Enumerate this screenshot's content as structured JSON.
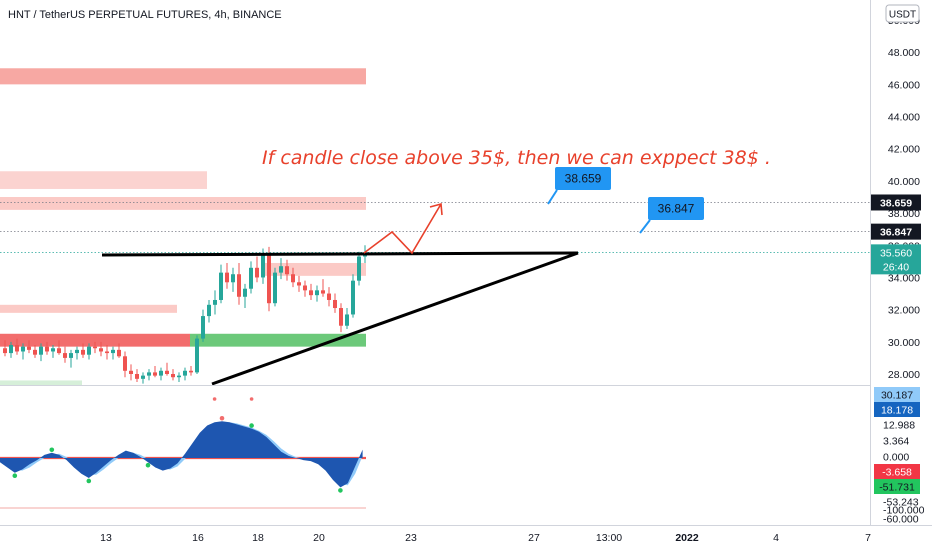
{
  "header": {
    "title": "HNT / TetherUS PERPETUAL FUTURES, 4h, BINANCE",
    "currency_button": "USDT"
  },
  "annotation_text": "If candle close above 35$, then we can exppect 38$ .",
  "chart_data": {
    "type": "candlestick",
    "title": "HNT / TetherUS PERPETUAL FUTURES, 4h, BINANCE",
    "price_axis": {
      "ylim": [
        27.3,
        50.5
      ],
      "ticks": [
        "50.000",
        "48.000",
        "46.000",
        "44.000",
        "42.000",
        "40.000",
        "38.000",
        "36.000",
        "34.000",
        "32.000",
        "30.000",
        "28.000"
      ],
      "tick_values": [
        50,
        48,
        46,
        44,
        42,
        40,
        38,
        36,
        34,
        32,
        30,
        28
      ]
    },
    "time_axis": {
      "labels": [
        "13",
        "16",
        "18",
        "20",
        "23",
        "27",
        "13:00",
        "2022",
        "4",
        "7"
      ],
      "bold": [
        "2022"
      ]
    },
    "candles": [
      {
        "o": 29.6,
        "h": 30.1,
        "l": 29.1,
        "c": 29.3
      },
      {
        "o": 29.3,
        "h": 30.0,
        "l": 29.0,
        "c": 29.8
      },
      {
        "o": 29.8,
        "h": 30.2,
        "l": 29.2,
        "c": 29.4
      },
      {
        "o": 29.4,
        "h": 29.9,
        "l": 28.9,
        "c": 29.7
      },
      {
        "o": 29.7,
        "h": 30.1,
        "l": 29.3,
        "c": 29.5
      },
      {
        "o": 29.5,
        "h": 29.8,
        "l": 29.0,
        "c": 29.2
      },
      {
        "o": 29.2,
        "h": 29.9,
        "l": 28.8,
        "c": 29.7
      },
      {
        "o": 29.7,
        "h": 30.0,
        "l": 29.2,
        "c": 29.4
      },
      {
        "o": 29.4,
        "h": 29.8,
        "l": 29.0,
        "c": 29.6
      },
      {
        "o": 29.6,
        "h": 30.1,
        "l": 29.2,
        "c": 29.3
      },
      {
        "o": 29.3,
        "h": 29.7,
        "l": 28.7,
        "c": 29.0
      },
      {
        "o": 29.0,
        "h": 29.5,
        "l": 28.4,
        "c": 29.3
      },
      {
        "o": 29.3,
        "h": 29.7,
        "l": 28.9,
        "c": 29.5
      },
      {
        "o": 29.5,
        "h": 29.9,
        "l": 29.0,
        "c": 29.2
      },
      {
        "o": 29.2,
        "h": 29.9,
        "l": 28.9,
        "c": 29.7
      },
      {
        "o": 29.7,
        "h": 30.0,
        "l": 29.3,
        "c": 29.6
      },
      {
        "o": 29.6,
        "h": 30.0,
        "l": 29.1,
        "c": 29.4
      },
      {
        "o": 29.4,
        "h": 29.8,
        "l": 28.9,
        "c": 29.3
      },
      {
        "o": 29.3,
        "h": 29.7,
        "l": 28.9,
        "c": 29.5
      },
      {
        "o": 29.5,
        "h": 29.9,
        "l": 29.0,
        "c": 29.1
      },
      {
        "o": 29.1,
        "h": 29.4,
        "l": 27.8,
        "c": 28.2
      },
      {
        "o": 28.2,
        "h": 28.6,
        "l": 27.6,
        "c": 28.0
      },
      {
        "o": 28.0,
        "h": 28.3,
        "l": 27.5,
        "c": 27.7
      },
      {
        "o": 27.7,
        "h": 28.1,
        "l": 27.4,
        "c": 27.9
      },
      {
        "o": 27.9,
        "h": 28.3,
        "l": 27.6,
        "c": 28.1
      },
      {
        "o": 28.1,
        "h": 28.5,
        "l": 27.8,
        "c": 27.9
      },
      {
        "o": 27.9,
        "h": 28.4,
        "l": 27.6,
        "c": 28.2
      },
      {
        "o": 28.2,
        "h": 28.7,
        "l": 27.9,
        "c": 28.0
      },
      {
        "o": 28.0,
        "h": 28.3,
        "l": 27.6,
        "c": 27.8
      },
      {
        "o": 27.8,
        "h": 28.1,
        "l": 27.5,
        "c": 27.9
      },
      {
        "o": 27.9,
        "h": 28.4,
        "l": 27.6,
        "c": 28.2
      },
      {
        "o": 28.2,
        "h": 28.5,
        "l": 27.9,
        "c": 28.1
      },
      {
        "o": 28.1,
        "h": 30.4,
        "l": 28.0,
        "c": 30.2
      },
      {
        "o": 30.2,
        "h": 32.0,
        "l": 30.0,
        "c": 31.6
      },
      {
        "o": 31.6,
        "h": 32.6,
        "l": 31.2,
        "c": 32.3
      },
      {
        "o": 32.3,
        "h": 33.2,
        "l": 31.7,
        "c": 32.6
      },
      {
        "o": 32.6,
        "h": 34.8,
        "l": 32.4,
        "c": 34.3
      },
      {
        "o": 34.3,
        "h": 34.9,
        "l": 33.3,
        "c": 33.7
      },
      {
        "o": 33.7,
        "h": 34.6,
        "l": 33.1,
        "c": 34.2
      },
      {
        "o": 34.2,
        "h": 34.9,
        "l": 32.3,
        "c": 32.8
      },
      {
        "o": 32.8,
        "h": 33.6,
        "l": 32.1,
        "c": 33.3
      },
      {
        "o": 33.3,
        "h": 35.0,
        "l": 33.0,
        "c": 34.6
      },
      {
        "o": 34.6,
        "h": 35.3,
        "l": 33.7,
        "c": 34.0
      },
      {
        "o": 34.0,
        "h": 35.8,
        "l": 33.6,
        "c": 35.5
      },
      {
        "o": 35.5,
        "h": 35.9,
        "l": 31.9,
        "c": 32.4
      },
      {
        "o": 32.4,
        "h": 34.6,
        "l": 32.2,
        "c": 34.3
      },
      {
        "o": 34.3,
        "h": 35.2,
        "l": 33.9,
        "c": 34.7
      },
      {
        "o": 34.7,
        "h": 35.1,
        "l": 33.8,
        "c": 34.2
      },
      {
        "o": 34.2,
        "h": 34.6,
        "l": 33.4,
        "c": 33.7
      },
      {
        "o": 33.7,
        "h": 34.1,
        "l": 33.1,
        "c": 33.5
      },
      {
        "o": 33.5,
        "h": 33.8,
        "l": 32.8,
        "c": 33.2
      },
      {
        "o": 33.2,
        "h": 33.6,
        "l": 32.6,
        "c": 32.9
      },
      {
        "o": 32.9,
        "h": 33.5,
        "l": 32.5,
        "c": 33.2
      },
      {
        "o": 33.2,
        "h": 33.9,
        "l": 32.8,
        "c": 33.0
      },
      {
        "o": 33.0,
        "h": 33.4,
        "l": 32.2,
        "c": 32.6
      },
      {
        "o": 32.6,
        "h": 33.0,
        "l": 31.8,
        "c": 32.1
      },
      {
        "o": 32.1,
        "h": 32.4,
        "l": 30.6,
        "c": 31.0
      },
      {
        "o": 31.0,
        "h": 32.1,
        "l": 30.8,
        "c": 31.7
      },
      {
        "o": 31.7,
        "h": 34.2,
        "l": 31.5,
        "c": 33.8
      },
      {
        "o": 33.8,
        "h": 35.6,
        "l": 33.5,
        "c": 35.3
      },
      {
        "o": 35.3,
        "h": 36.0,
        "l": 34.9,
        "c": 35.56
      }
    ],
    "zones": [
      {
        "from": 46.0,
        "to": 47.0,
        "color": "#f7a8a3"
      },
      {
        "from": 39.5,
        "to": 40.6,
        "color": "#fbd3d0"
      },
      {
        "from": 38.2,
        "to": 39.0,
        "color": "#fbcac6"
      },
      {
        "from": 34.1,
        "to": 34.9,
        "color": "#fbcac6"
      },
      {
        "from": 31.8,
        "to": 32.3,
        "color": "#fbcac6"
      },
      {
        "from": 29.7,
        "to": 30.5,
        "color": "#f26d6d"
      },
      {
        "from": 29.7,
        "to": 30.5,
        "color": "#6cc97a"
      },
      {
        "from": 27.3,
        "to": 27.6,
        "color": "#d6efd9"
      }
    ],
    "horizontal_lines": [
      {
        "value": 38.659,
        "label": "38.659",
        "bg": "#131722",
        "fg": "#ffffff"
      },
      {
        "value": 36.847,
        "label": "36.847",
        "bg": "#131722",
        "fg": "#ffffff"
      }
    ],
    "last_price": {
      "value": 35.56,
      "label": "35.560",
      "countdown": "26:40",
      "color": "#26a69a"
    },
    "callouts": [
      {
        "text": "38.659",
        "color": "#2196f3"
      },
      {
        "text": "36.847",
        "color": "#2196f3"
      }
    ],
    "oscillator": {
      "axis_labels": [
        "30.187",
        "18.178",
        "12.988",
        "3.364",
        "0.000",
        "-3.658",
        "-51.731",
        "-53.243",
        "-100.000",
        "-60.000"
      ],
      "badges": [
        {
          "text": "30.187",
          "bg": "#90caf9",
          "fg": "#131722"
        },
        {
          "text": "18.178",
          "bg": "#1565c0",
          "fg": "#ffffff"
        },
        {
          "text": "-3.658",
          "bg": "#f23645",
          "fg": "#ffffff"
        },
        {
          "text": "-51.731",
          "bg": "#22c55e",
          "fg": "#131722"
        }
      ],
      "values": [
        -4,
        -9,
        -14,
        -11,
        -6,
        -2,
        3,
        5,
        3,
        -2,
        -9,
        -15,
        -19,
        -14,
        -8,
        -2,
        3,
        7,
        5,
        1,
        -4,
        -9,
        -12,
        -10,
        -5,
        4,
        14,
        24,
        31,
        34,
        35,
        34,
        32,
        30,
        28,
        25,
        20,
        13,
        6,
        2,
        0,
        -2,
        -3,
        -6,
        -12,
        -21,
        -28,
        -24,
        -8,
        8
      ],
      "signal": [
        -3,
        -7,
        -11,
        -12,
        -9,
        -4,
        0,
        3,
        4,
        1,
        -5,
        -11,
        -16,
        -16,
        -11,
        -5,
        0,
        4,
        5,
        3,
        -1,
        -6,
        -10,
        -11,
        -8,
        -1,
        9,
        19,
        27,
        32,
        34,
        34,
        33,
        31,
        29,
        26,
        22,
        16,
        9,
        4,
        1,
        -1,
        -2,
        -4,
        -9,
        -17,
        -25,
        -26,
        -15,
        2
      ]
    }
  }
}
